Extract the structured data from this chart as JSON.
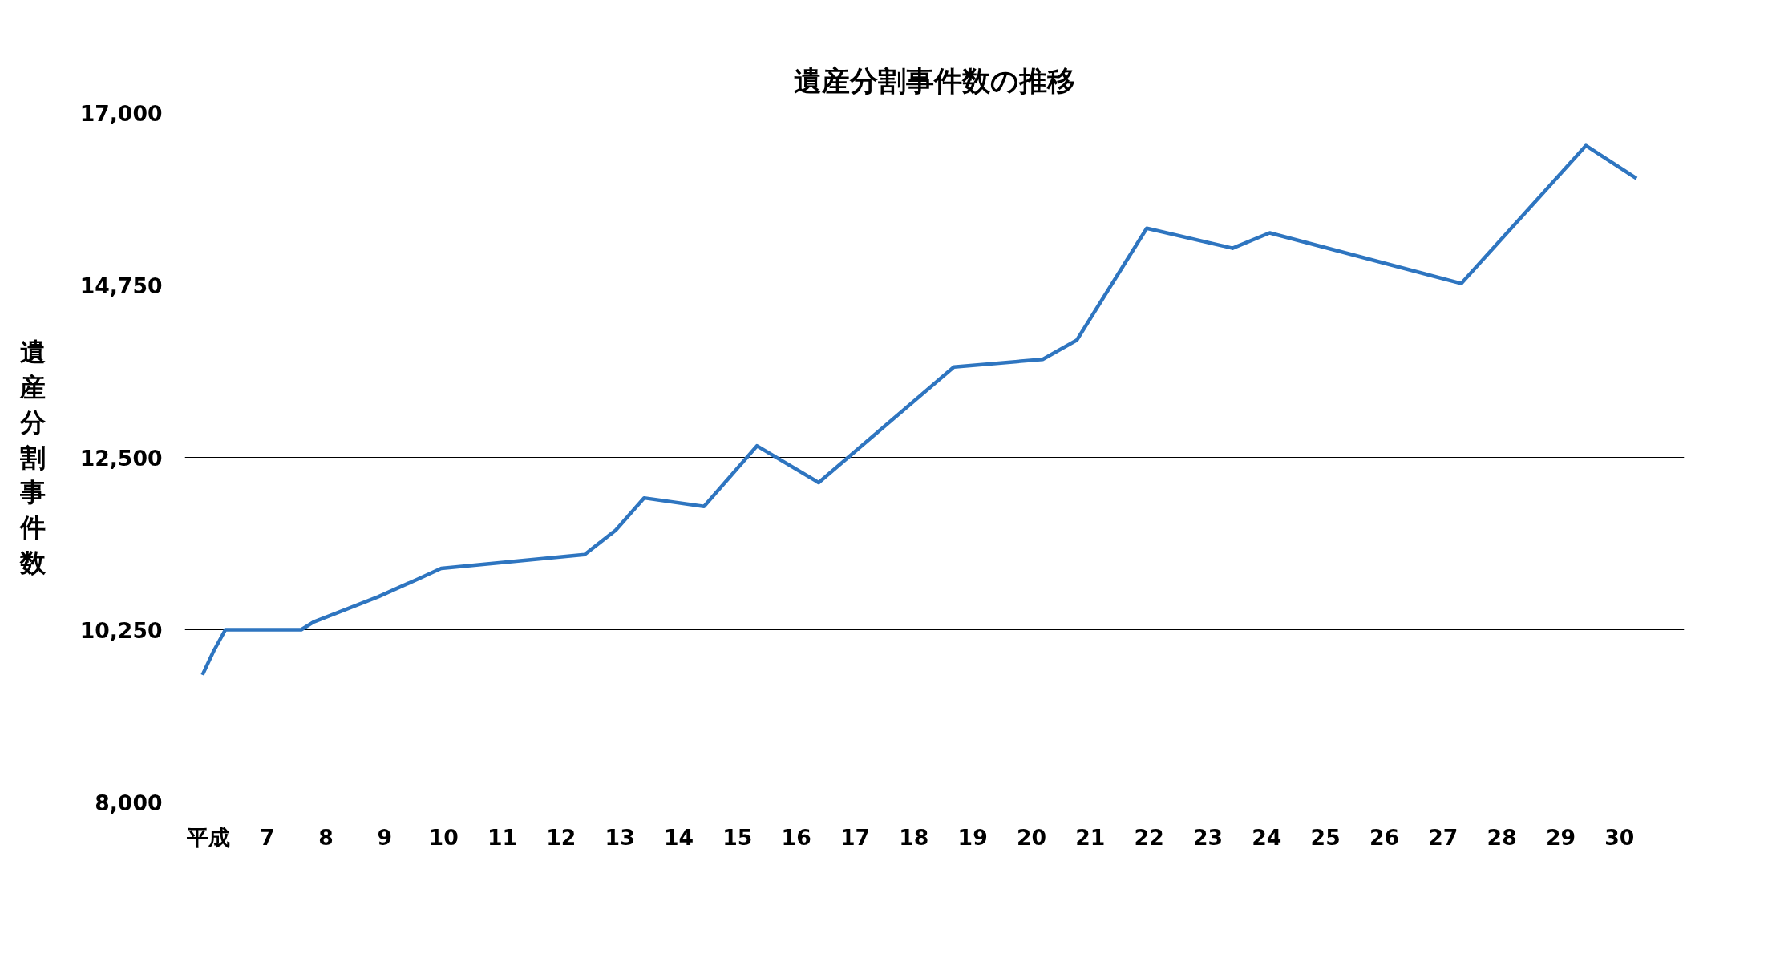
{
  "chart_data": {
    "type": "line",
    "title": "遺産分割事件数の推移",
    "ylabel": "遺産分割事件数",
    "x": [
      5.9,
      6.09,
      6.29,
      7.58,
      7.79,
      8.89,
      9.56,
      9.96,
      12.4,
      12.93,
      13.41,
      14.43,
      15.33,
      16.38,
      18.68,
      20.19,
      20.77,
      21.96,
      23.42,
      24.05,
      27.31,
      29.43,
      30.29
    ],
    "series": [
      {
        "color": "#2e75c0",
        "values": [
          9660,
          9970,
          10250,
          10250,
          10350,
          10680,
          10910,
          11050,
          11230,
          11550,
          11970,
          11860,
          12650,
          12170,
          13680,
          13780,
          14030,
          15490,
          15230,
          15430,
          14770,
          16570,
          16140
        ]
      }
    ],
    "xlim": [
      5.6,
      31.1
    ],
    "xticks": [
      {
        "value": 6,
        "label": "平成"
      },
      7,
      8,
      9,
      10,
      11,
      12,
      13,
      14,
      15,
      16,
      17,
      18,
      19,
      20,
      21,
      22,
      23,
      24,
      25,
      26,
      27,
      28,
      29,
      30
    ],
    "ylim": [
      8000,
      17000
    ],
    "yticks": [
      {
        "value": 8000,
        "label": "8,000"
      },
      {
        "value": 10250,
        "label": "10,250"
      },
      {
        "value": 12500,
        "label": "12,500"
      },
      {
        "value": 14750,
        "label": "14,750"
      },
      {
        "value": 17000,
        "label": "17,000"
      }
    ],
    "grid": "y",
    "marker": "none",
    "line_style": "solid"
  }
}
